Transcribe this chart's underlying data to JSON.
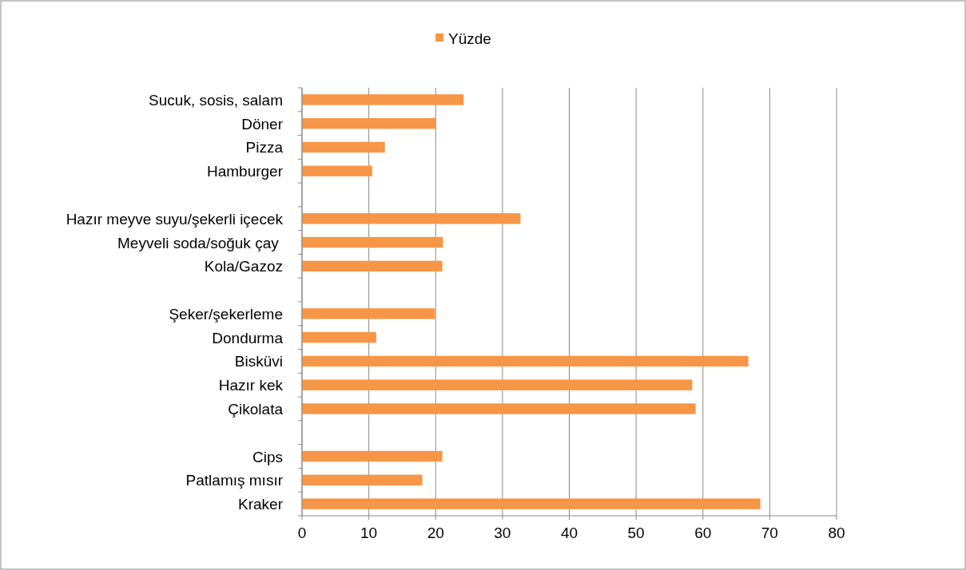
{
  "chart_data": {
    "type": "bar",
    "orientation": "horizontal",
    "categories": [
      "Sucuk, sosis, salam",
      "Döner",
      "Pizza",
      "Hamburger",
      null,
      "Hazır meyve suyu/şekerli içecek",
      "Meyveli soda/soğuk çay ",
      "Kola/Gazoz",
      null,
      "Şeker/şekerleme",
      "Dondurma",
      "Bisküvi",
      "Hazır kek",
      "Çikolata",
      null,
      "Cips",
      "Patlamış mısır",
      "Kraker"
    ],
    "series": [
      {
        "name": "Yüzde",
        "color": "#f79646",
        "values": [
          24.2,
          20.0,
          12.4,
          10.5,
          null,
          32.7,
          21.1,
          21.0,
          null,
          19.9,
          11.1,
          66.8,
          58.4,
          58.9,
          null,
          21.0,
          18.0,
          68.6
        ]
      }
    ],
    "xlim": [
      0,
      80
    ],
    "xticks": [
      0,
      10,
      20,
      30,
      40,
      50,
      60,
      70,
      80
    ],
    "grid": "x",
    "legend": "top"
  }
}
